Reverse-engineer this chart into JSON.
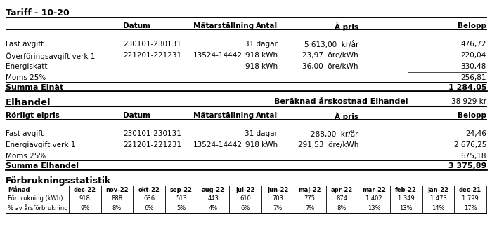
{
  "title1": "Tariff - 10-20",
  "header1": [
    "Datum",
    "Mätarställning",
    "Antal",
    "À pris",
    "Belopp"
  ],
  "rows1": [
    [
      "Fast avgift",
      "230101-230131",
      "",
      "31 dagar",
      "5 613,00  kr/år",
      "476,72"
    ],
    [
      "Överföringsavgift verk 1",
      "221201-221231",
      "13524-14442",
      "918 kWh",
      "23,97  öre/kWh",
      "220,04"
    ],
    [
      "Energiskatt",
      "",
      "",
      "918 kWh",
      "36,00  öre/kWh",
      "330,48"
    ],
    [
      "Moms 25%",
      "",
      "",
      "",
      "",
      "256,81"
    ]
  ],
  "summa1_label": "Summa Elnät",
  "summa1_value": "1 284,05",
  "title2": "Elhandel",
  "title2_right": "Beräknad årskostnad Elhandel",
  "title2_right_value": "38 929 kr",
  "header2_left": "Rörligt elpris",
  "header2": [
    "Datum",
    "Mätarställning",
    "Antal",
    "À pris",
    "Belopp"
  ],
  "rows2": [
    [
      "Fast avgift",
      "230101-230131",
      "",
      "31 dagar",
      "288,00  kr/år",
      "24,46"
    ],
    [
      "Energiavgift verk 1",
      "221201-221231",
      "13524-14442",
      "918 kWh",
      "291,53  öre/kWh",
      "2 676,25"
    ],
    [
      "Moms 25%",
      "",
      "",
      "",
      "",
      "675,18"
    ]
  ],
  "summa2_label": "Summa Elhandel",
  "summa2_value": "3 375,89",
  "title3": "Förbrukningsstatistik",
  "table3_headers": [
    "Månad",
    "dec-22",
    "nov-22",
    "okt-22",
    "sep-22",
    "aug-22",
    "jul-22",
    "jun-22",
    "maj-22",
    "apr-22",
    "mar-22",
    "feb-22",
    "jan-22",
    "dec-21"
  ],
  "table3_row1_label": "Förbrukning (kWh)",
  "table3_row1": [
    "918",
    "888",
    "636",
    "513",
    "443",
    "610",
    "703",
    "775",
    "874",
    "1 402",
    "1 349",
    "1 473",
    "1 799"
  ],
  "table3_row2_label": "% av årsförbrukning",
  "table3_row2": [
    "9%",
    "8%",
    "6%",
    "5%",
    "4%",
    "6%",
    "7%",
    "7%",
    "8%",
    "13%",
    "13%",
    "14%",
    "17%"
  ],
  "bg_color": "#ffffff",
  "text_color": "#000000"
}
